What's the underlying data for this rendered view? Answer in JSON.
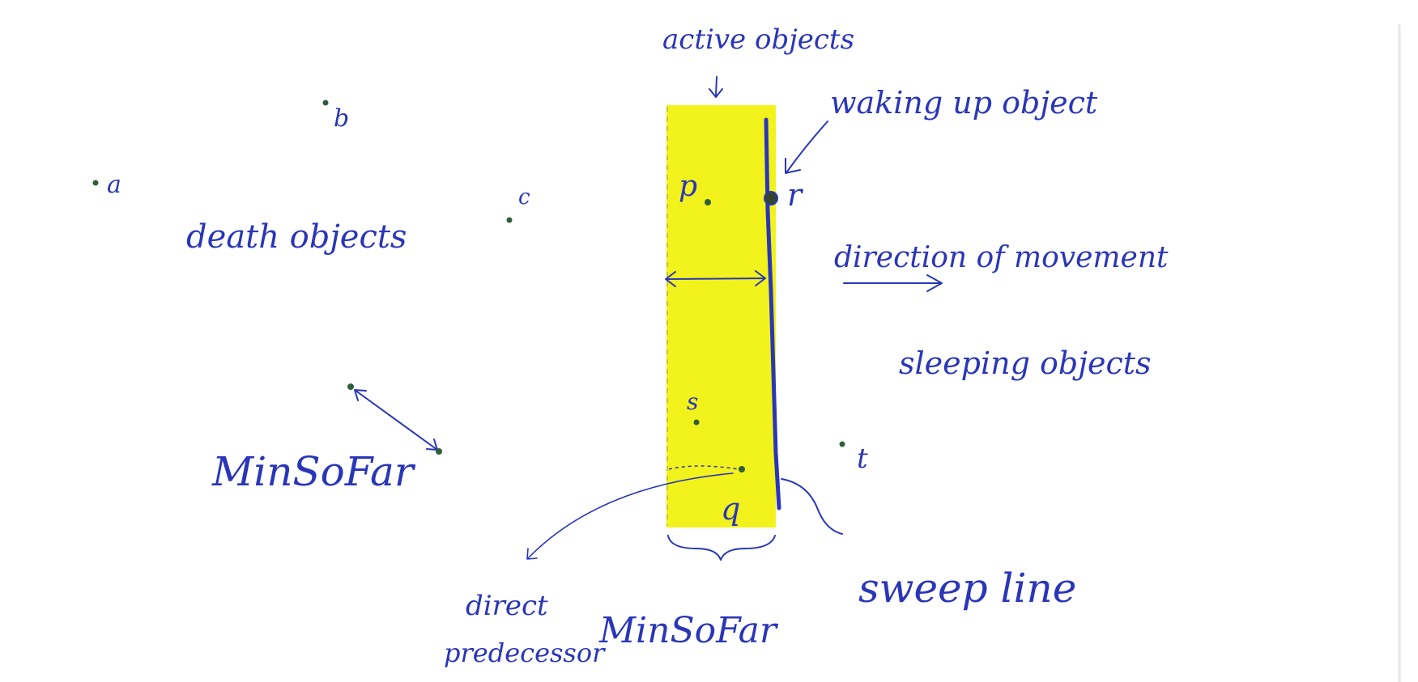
{
  "labels": {
    "active_objects": "active objects",
    "waking_up_object": "waking up object",
    "death_objects": "death objects",
    "direction_of_movement": "direction of movement",
    "sleeping_objects": "sleeping objects",
    "min_so_far_left": "MinSoFar",
    "min_so_far_bottom": "MinSoFar",
    "sweep_line": "sweep line",
    "direct": "direct",
    "predecessor": "predecessor"
  },
  "points": {
    "a": "a",
    "b": "b",
    "c": "c",
    "p": "p",
    "r": "r",
    "s": "s",
    "q": "q",
    "t": "t"
  },
  "colors": {
    "ink": "#2a36b8",
    "highlight": "#f2f21c",
    "dot": "#2f5f3a",
    "background": "#ffffff"
  }
}
